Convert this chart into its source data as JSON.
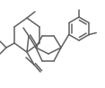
{
  "line_color": "#606060",
  "line_width": 1.1,
  "fig_width": 1.17,
  "fig_height": 0.98,
  "dpi": 100,
  "xlim": [
    0,
    117
  ],
  "ylim": [
    0,
    98
  ]
}
